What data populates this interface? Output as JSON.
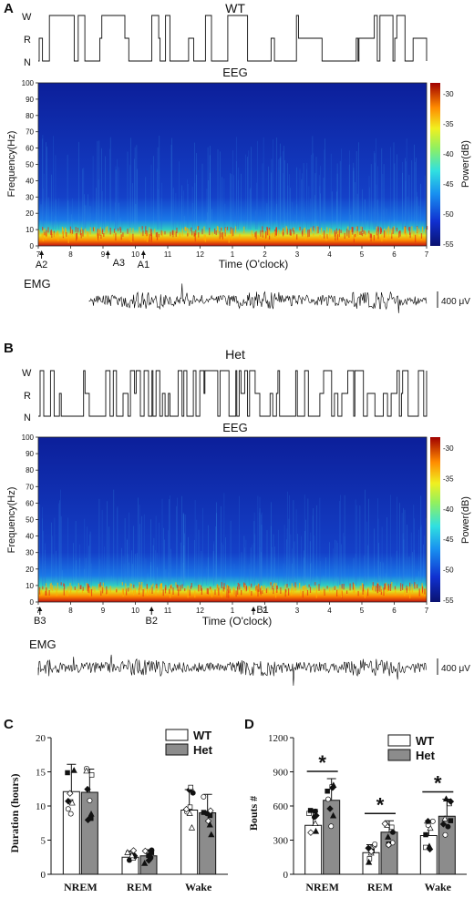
{
  "panelA": {
    "letter": "A",
    "genotype": "WT",
    "state_labels": [
      "W",
      "R",
      "N"
    ],
    "eeg_title": "EEG",
    "freq_ticks": [
      "100",
      "90",
      "80",
      "70",
      "60",
      "50",
      "40",
      "30",
      "20",
      "10",
      "0"
    ],
    "ylabel": "Frequency(Hz)",
    "colorbar_label": "Power(dB)",
    "colorbar_ticks": [
      "-30",
      "-35",
      "-40",
      "-45",
      "-50",
      "-55"
    ],
    "time_ticks": [
      "7",
      "8",
      "9",
      "10",
      "11",
      "12",
      "1",
      "2",
      "3",
      "4",
      "5",
      "6",
      "7"
    ],
    "xlabel": "Time (O'clock)",
    "markers": [
      {
        "label": "A2",
        "hour": 7.1
      },
      {
        "label": "A3",
        "hour": 9.15
      },
      {
        "label": "A1",
        "hour": 10.25
      }
    ],
    "emg_label": "EMG",
    "scale_label": "400 μV"
  },
  "panelB": {
    "letter": "B",
    "genotype": "Het",
    "state_labels": [
      "W",
      "R",
      "N"
    ],
    "eeg_title": "EEG",
    "freq_ticks": [
      "100",
      "90",
      "80",
      "70",
      "60",
      "50",
      "40",
      "30",
      "20",
      "10",
      "0"
    ],
    "ylabel": "Frequency(Hz)",
    "colorbar_label": "Power(dB)",
    "colorbar_ticks": [
      "-30",
      "-35",
      "-40",
      "-45",
      "-50",
      "-55"
    ],
    "time_ticks": [
      "7",
      "8",
      "9",
      "10",
      "11",
      "12",
      "1",
      "2",
      "3",
      "4",
      "5",
      "6",
      "7"
    ],
    "xlabel": "Time (O'clock)",
    "markers": [
      {
        "label": "B3",
        "hour": 7.05
      },
      {
        "label": "B2",
        "hour": 10.5
      },
      {
        "label": "B1",
        "hour": 13.65
      }
    ],
    "emg_label": "EMG",
    "scale_label": "400 μV"
  },
  "chart_data": [
    {
      "type": "bar",
      "panel": "C",
      "categories": [
        "NREM",
        "REM",
        "Wake"
      ],
      "ylabel": "Duration (hours)",
      "ylim": [
        0,
        20
      ],
      "yticks": [
        "0",
        "5",
        "10",
        "15",
        "20"
      ],
      "legend_position": "top-right",
      "series": [
        {
          "name": "WT",
          "values": [
            12.1,
            2.5,
            9.4
          ],
          "errors": [
            4.0,
            0.9,
            3.0
          ],
          "color": "#ffffff"
        },
        {
          "name": "Het",
          "values": [
            12.0,
            2.7,
            9.0
          ],
          "errors": [
            3.4,
            0.9,
            2.7
          ],
          "color": "#8c8c8c"
        }
      ],
      "significance": []
    },
    {
      "type": "bar",
      "panel": "D",
      "categories": [
        "NREM",
        "REM",
        "Wake"
      ],
      "ylabel": "Bouts #",
      "ylim": [
        0,
        1200
      ],
      "yticks": [
        "0",
        "300",
        "600",
        "900",
        "1200"
      ],
      "legend_position": "top-right",
      "series": [
        {
          "name": "WT",
          "values": [
            430,
            190,
            340
          ],
          "errors": [
            140,
            70,
            110
          ],
          "color": "#ffffff"
        },
        {
          "name": "Het",
          "values": [
            650,
            370,
            510
          ],
          "errors": [
            190,
            100,
            150
          ],
          "color": "#8c8c8c"
        }
      ],
      "significance": [
        "*",
        "*",
        "*"
      ]
    }
  ],
  "colors": {
    "bar_wt": "#ffffff",
    "bar_het": "#8c8c8c",
    "spectrogram_low": "#0a1f96",
    "spectrogram_high": "#b40000"
  }
}
